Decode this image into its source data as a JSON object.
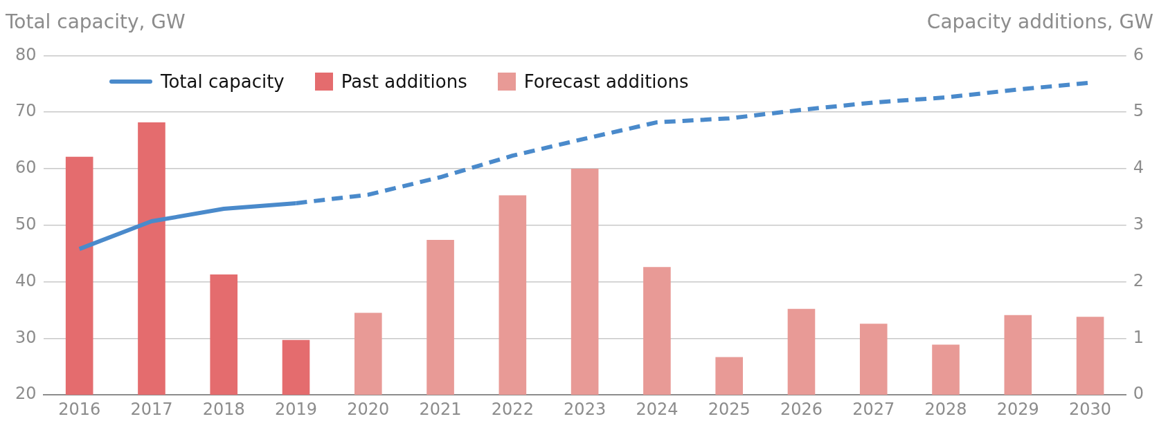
{
  "chart_data": {
    "type": "bar",
    "ylabel": "Total capacity, GW",
    "y2label": "Capacity additions, GW",
    "categories": [
      "2016",
      "2017",
      "2018",
      "2019",
      "2020",
      "2021",
      "2022",
      "2023",
      "2024",
      "2025",
      "2026",
      "2027",
      "2028",
      "2029",
      "2030"
    ],
    "series": [
      {
        "name": "Total capacity",
        "type": "line",
        "color": "#4a8acb",
        "line_style": "solid",
        "values": [
          45.8,
          50.7,
          52.9,
          53.9,
          null,
          null,
          null,
          null,
          null,
          null,
          null,
          null,
          null,
          null,
          null
        ]
      },
      {
        "type": "line",
        "color": "#4a8acb",
        "line_style": "dashed",
        "values": [
          null,
          null,
          null,
          53.9,
          55.4,
          58.5,
          62.3,
          65.3,
          68.2,
          68.9,
          70.4,
          71.7,
          72.6,
          74.0,
          75.2
        ]
      },
      {
        "name": "Past additions",
        "axis": "y2",
        "color": "#e46c6e",
        "values": [
          4.21,
          4.82,
          2.13,
          0.97,
          null,
          null,
          null,
          null,
          null,
          null,
          null,
          null,
          null,
          null,
          null
        ]
      },
      {
        "name": "Forecast additions",
        "axis": "y2",
        "color": "#e89a96",
        "values": [
          null,
          null,
          null,
          null,
          1.45,
          2.74,
          3.53,
          4.0,
          2.26,
          0.67,
          1.52,
          1.26,
          0.89,
          1.41,
          1.38
        ]
      }
    ],
    "ylim": [
      20,
      80
    ],
    "yticks": [
      20,
      30,
      40,
      50,
      60,
      70,
      80
    ],
    "y2lim": [
      0,
      6
    ],
    "y2ticks": [
      0,
      1,
      2,
      3,
      4,
      5,
      6
    ],
    "grid": "y",
    "legend": "top left",
    "marker": "none"
  }
}
